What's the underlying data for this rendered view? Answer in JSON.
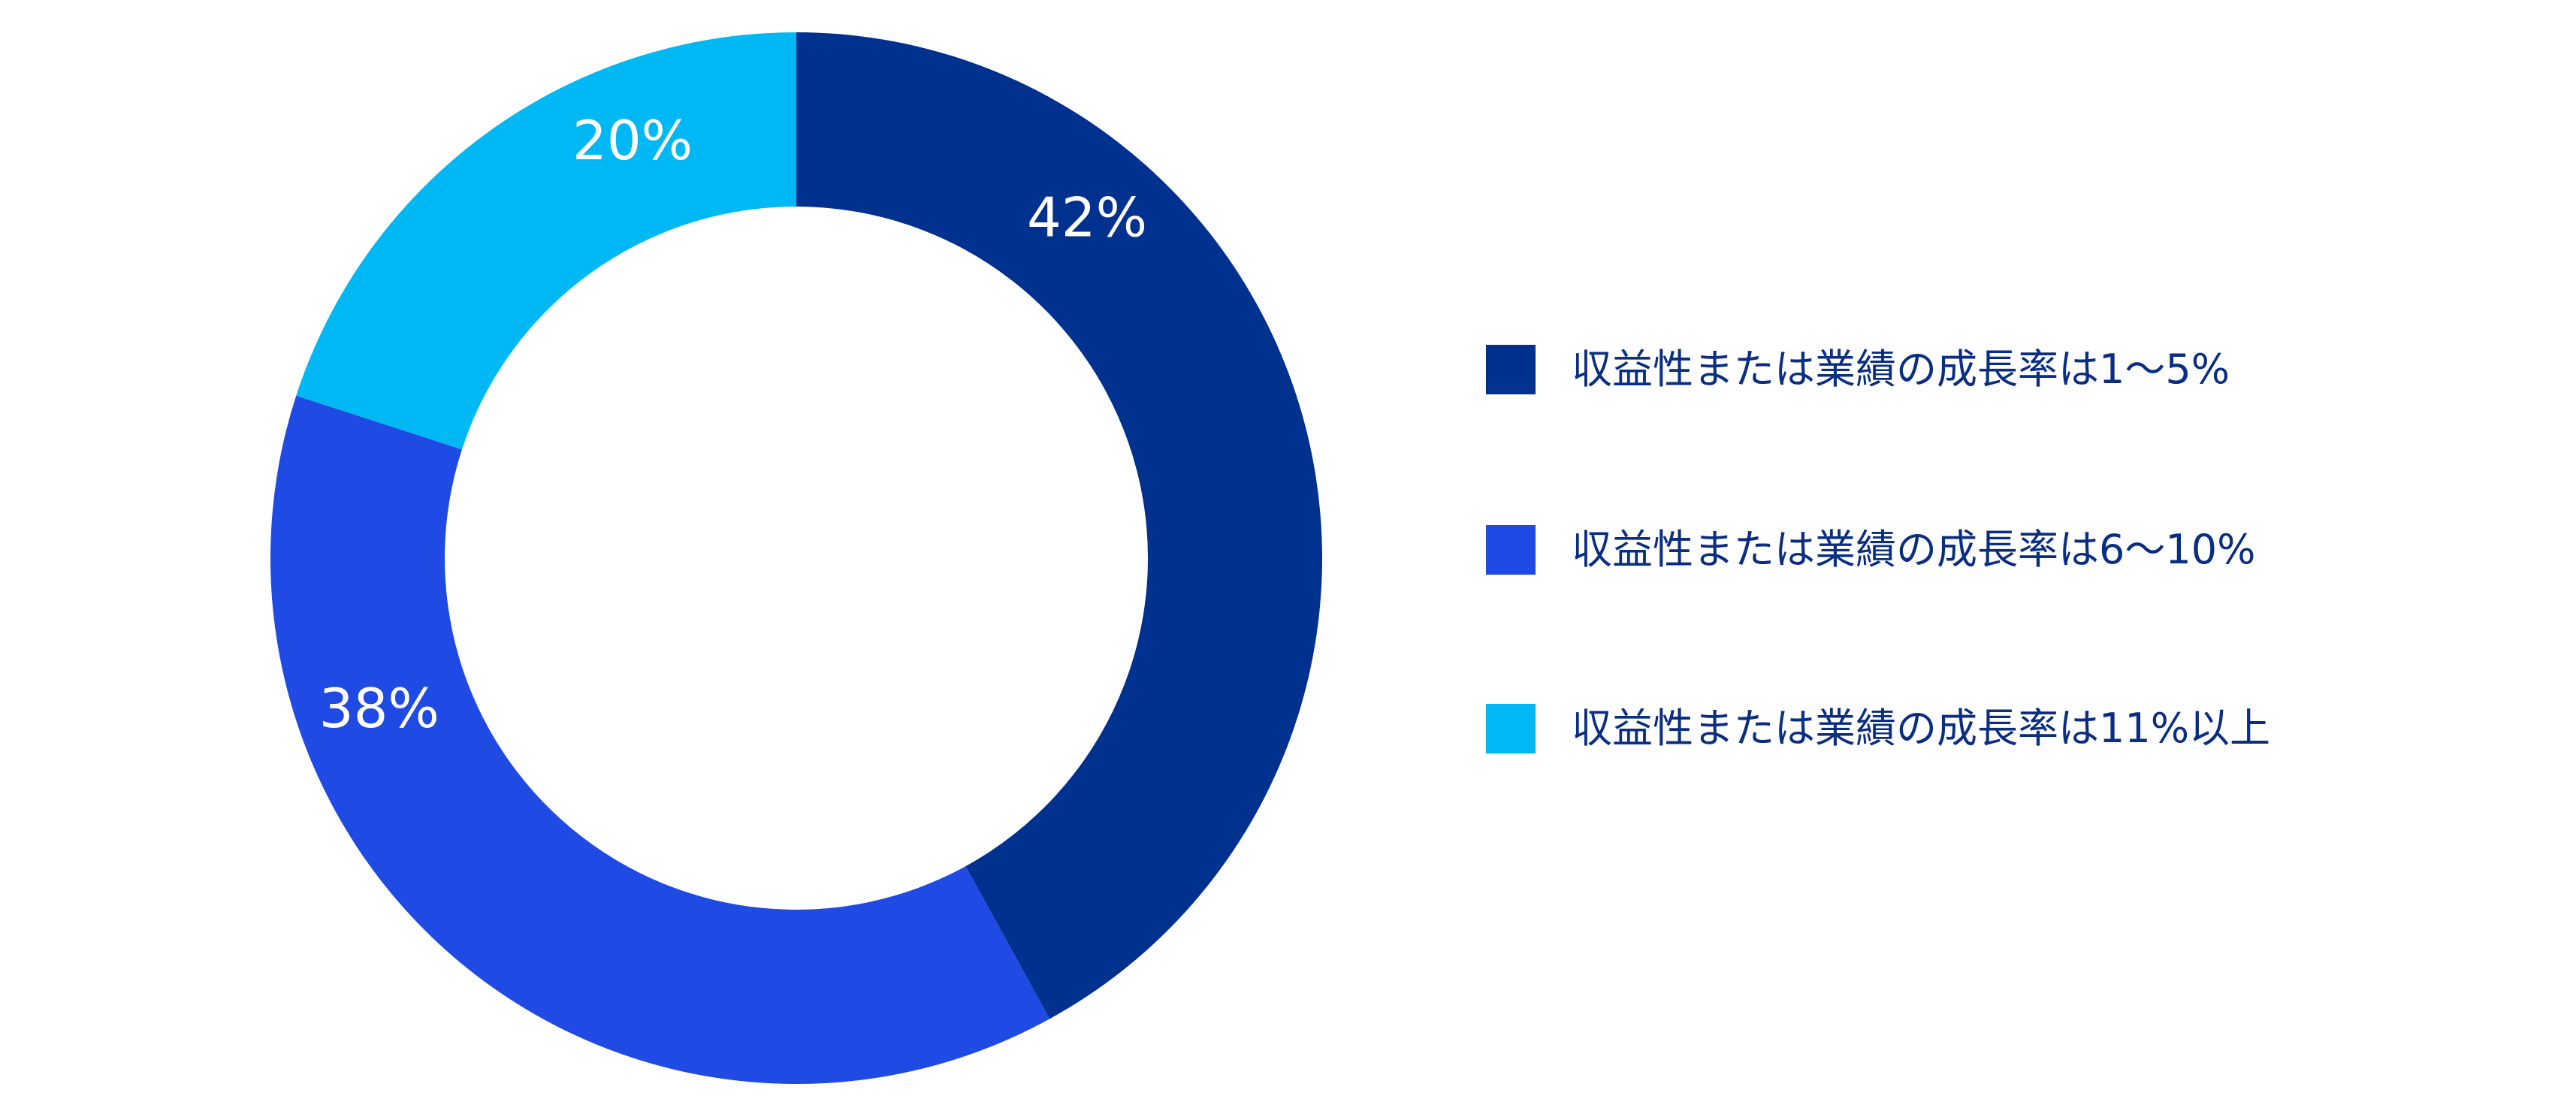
{
  "chart_data": {
    "type": "pie",
    "variant": "donut",
    "slices": [
      {
        "label": "収益性または業績の成長率は1〜5%",
        "value": 42,
        "value_label": "42%",
        "color": "#00318f"
      },
      {
        "label": "収益性または業績の成長率は6〜10%",
        "value": 38,
        "value_label": "38%",
        "color": "#1f4ae3"
      },
      {
        "label": "収益性または業績の成長率は11%以上",
        "value": 20,
        "value_label": "20%",
        "color": "#00b8f4"
      }
    ],
    "start_angle": "12 o'clock",
    "direction": "clockwise",
    "legend_position": "right",
    "title": ""
  }
}
